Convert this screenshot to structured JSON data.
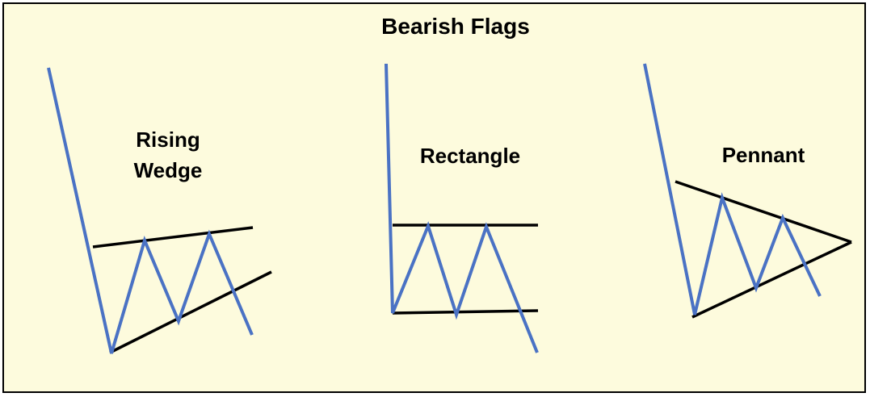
{
  "title": "Bearish Flags",
  "patterns": [
    {
      "id": "rising-wedge",
      "label_lines": [
        "Rising",
        "Wedge"
      ]
    },
    {
      "id": "rectangle",
      "label_lines": [
        "Rectangle"
      ]
    },
    {
      "id": "pennant",
      "label_lines": [
        "Pennant"
      ]
    }
  ],
  "colors": {
    "background": "#fdfbdd",
    "border": "#000000",
    "price_line": "#4a72c4",
    "trend_line": "#000000"
  }
}
